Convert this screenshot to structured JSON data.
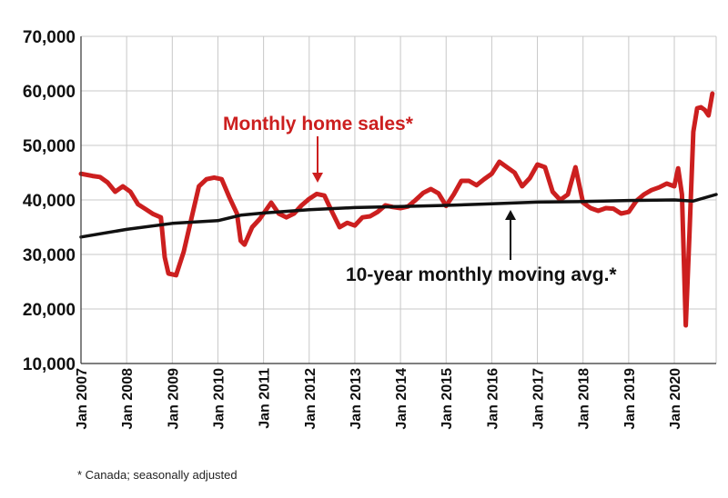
{
  "chart_data": {
    "type": "line",
    "ylim": [
      10000,
      70000
    ],
    "yticks": [
      10000,
      20000,
      30000,
      40000,
      50000,
      60000,
      70000
    ],
    "ytick_labels": [
      "10,000",
      "20,000",
      "30,000",
      "40,000",
      "50,000",
      "60,000",
      "70,000"
    ],
    "xlim": [
      "2007-01",
      "2020-12"
    ],
    "xtick_labels": [
      "Jan 2007",
      "Jan 2008",
      "Jan 2009",
      "Jan 2010",
      "Jan 2011",
      "Jan 2012",
      "Jan 2013",
      "Jan 2014",
      "Jan 2015",
      "Jan 2016",
      "Jan 2017",
      "Jan 2018",
      "Jan 2019",
      "Jan 2020"
    ],
    "grid": true,
    "series": [
      {
        "name": "Monthly home sales*",
        "color": "#cc1f1f",
        "points": [
          [
            "2007-01",
            44800
          ],
          [
            "2007-04",
            44400
          ],
          [
            "2007-06",
            44200
          ],
          [
            "2007-08",
            43200
          ],
          [
            "2007-10",
            41500
          ],
          [
            "2007-12",
            42500
          ],
          [
            "2008-02",
            41500
          ],
          [
            "2008-04",
            39200
          ],
          [
            "2008-06",
            38300
          ],
          [
            "2008-08",
            37400
          ],
          [
            "2008-10",
            36800
          ],
          [
            "2008-11",
            29500
          ],
          [
            "2008-12",
            26500
          ],
          [
            "2009-02",
            26200
          ],
          [
            "2009-04",
            30500
          ],
          [
            "2009-06",
            36500
          ],
          [
            "2009-08",
            42500
          ],
          [
            "2009-10",
            43800
          ],
          [
            "2009-12",
            44100
          ],
          [
            "2010-02",
            43800
          ],
          [
            "2010-04",
            40500
          ],
          [
            "2010-06",
            37500
          ],
          [
            "2010-07",
            32500
          ],
          [
            "2010-08",
            31800
          ],
          [
            "2010-10",
            35000
          ],
          [
            "2010-12",
            36500
          ],
          [
            "2011-02",
            38500
          ],
          [
            "2011-03",
            39500
          ],
          [
            "2011-05",
            37500
          ],
          [
            "2011-07",
            36800
          ],
          [
            "2011-09",
            37500
          ],
          [
            "2011-11",
            39000
          ],
          [
            "2012-01",
            40200
          ],
          [
            "2012-03",
            41100
          ],
          [
            "2012-05",
            40800
          ],
          [
            "2012-07",
            37800
          ],
          [
            "2012-09",
            35000
          ],
          [
            "2012-11",
            35800
          ],
          [
            "2013-01",
            35300
          ],
          [
            "2013-03",
            36800
          ],
          [
            "2013-05",
            37000
          ],
          [
            "2013-07",
            37800
          ],
          [
            "2013-09",
            39000
          ],
          [
            "2013-11",
            38700
          ],
          [
            "2014-01",
            38500
          ],
          [
            "2014-03",
            38800
          ],
          [
            "2014-05",
            40000
          ],
          [
            "2014-07",
            41300
          ],
          [
            "2014-09",
            42000
          ],
          [
            "2014-11",
            41200
          ],
          [
            "2015-01",
            38900
          ],
          [
            "2015-03",
            41000
          ],
          [
            "2015-05",
            43500
          ],
          [
            "2015-07",
            43500
          ],
          [
            "2015-09",
            42700
          ],
          [
            "2015-11",
            43800
          ],
          [
            "2016-01",
            44800
          ],
          [
            "2016-03",
            47000
          ],
          [
            "2016-05",
            46000
          ],
          [
            "2016-07",
            45000
          ],
          [
            "2016-09",
            42500
          ],
          [
            "2016-11",
            44000
          ],
          [
            "2017-01",
            46500
          ],
          [
            "2017-03",
            46000
          ],
          [
            "2017-05",
            41500
          ],
          [
            "2017-07",
            40000
          ],
          [
            "2017-09",
            41000
          ],
          [
            "2017-11",
            46000
          ],
          [
            "2018-01",
            39500
          ],
          [
            "2018-03",
            38500
          ],
          [
            "2018-05",
            38000
          ],
          [
            "2018-07",
            38500
          ],
          [
            "2018-09",
            38400
          ],
          [
            "2018-11",
            37500
          ],
          [
            "2019-01",
            37800
          ],
          [
            "2019-03",
            39800
          ],
          [
            "2019-05",
            41000
          ],
          [
            "2019-07",
            41800
          ],
          [
            "2019-09",
            42300
          ],
          [
            "2019-11",
            43000
          ],
          [
            "2020-01",
            42500
          ],
          [
            "2020-02",
            45800
          ],
          [
            "2020-03",
            41000
          ],
          [
            "2020-04",
            17000
          ],
          [
            "2020-05",
            34000
          ],
          [
            "2020-06",
            52500
          ],
          [
            "2020-07",
            56800
          ],
          [
            "2020-08",
            57000
          ],
          [
            "2020-09",
            56500
          ],
          [
            "2020-10",
            55500
          ],
          [
            "2020-11",
            59500
          ]
        ]
      },
      {
        "name": "10-year monthly moving avg.*",
        "color": "#111111",
        "points": [
          [
            "2007-01",
            33200
          ],
          [
            "2008-01",
            34600
          ],
          [
            "2009-01",
            35700
          ],
          [
            "2010-01",
            36200
          ],
          [
            "2010-07",
            37200
          ],
          [
            "2011-01",
            37600
          ],
          [
            "2012-01",
            38200
          ],
          [
            "2013-01",
            38600
          ],
          [
            "2014-01",
            38800
          ],
          [
            "2015-01",
            39000
          ],
          [
            "2016-01",
            39300
          ],
          [
            "2017-01",
            39600
          ],
          [
            "2018-01",
            39700
          ],
          [
            "2019-01",
            39900
          ],
          [
            "2020-01",
            40000
          ],
          [
            "2020-06",
            39800
          ],
          [
            "2020-12",
            41000
          ]
        ]
      }
    ],
    "annotations": {
      "sales_label": "Monthly home sales*",
      "avg_label": "10-year monthly moving avg.*"
    }
  },
  "footnote": "* Canada; seasonally adjusted"
}
